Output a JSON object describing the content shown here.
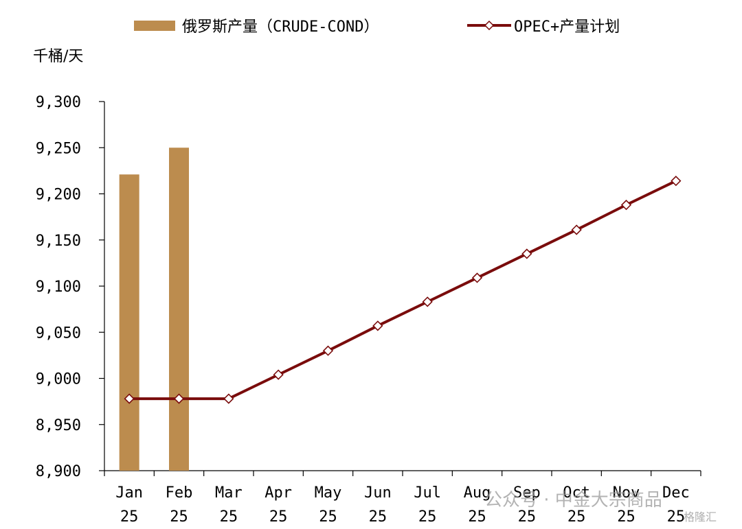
{
  "chart_data": {
    "type": "bar",
    "y_unit_label": "千桶/天",
    "ylim": [
      8900,
      9300
    ],
    "y_ticks": [
      "8,900",
      "8,950",
      "9,000",
      "9,050",
      "9,100",
      "9,150",
      "9,200",
      "9,250",
      "9,300"
    ],
    "y_tick_values": [
      8900,
      8950,
      9000,
      9050,
      9100,
      9150,
      9200,
      9250,
      9300
    ],
    "categories": [
      [
        "Jan",
        "25"
      ],
      [
        "Feb",
        "25"
      ],
      [
        "Mar",
        "25"
      ],
      [
        "Apr",
        "25"
      ],
      [
        "May",
        "25"
      ],
      [
        "Jun",
        "25"
      ],
      [
        "Jul",
        "25"
      ],
      [
        "Aug",
        "25"
      ],
      [
        "Sep",
        "25"
      ],
      [
        "Oct",
        "25"
      ],
      [
        "Nov",
        "25"
      ],
      [
        "Dec",
        "25"
      ]
    ],
    "series": [
      {
        "name": "俄罗斯产量（CRUDE-COND）",
        "type": "bar",
        "color": "#BC8C4E",
        "values": [
          9221,
          9250,
          null,
          null,
          null,
          null,
          null,
          null,
          null,
          null,
          null,
          null
        ]
      },
      {
        "name": "OPEC+产量计划",
        "type": "line",
        "color": "#7A0C0C",
        "marker": "diamond",
        "values": [
          8978,
          8978,
          8978,
          9004,
          9030,
          9057,
          9083,
          9109,
          9135,
          9161,
          9188,
          9214
        ]
      }
    ],
    "grid": false,
    "legend_position": "top"
  },
  "watermark": {
    "text": "公众号 · 中金大宗商品",
    "sub": "格隆汇"
  }
}
